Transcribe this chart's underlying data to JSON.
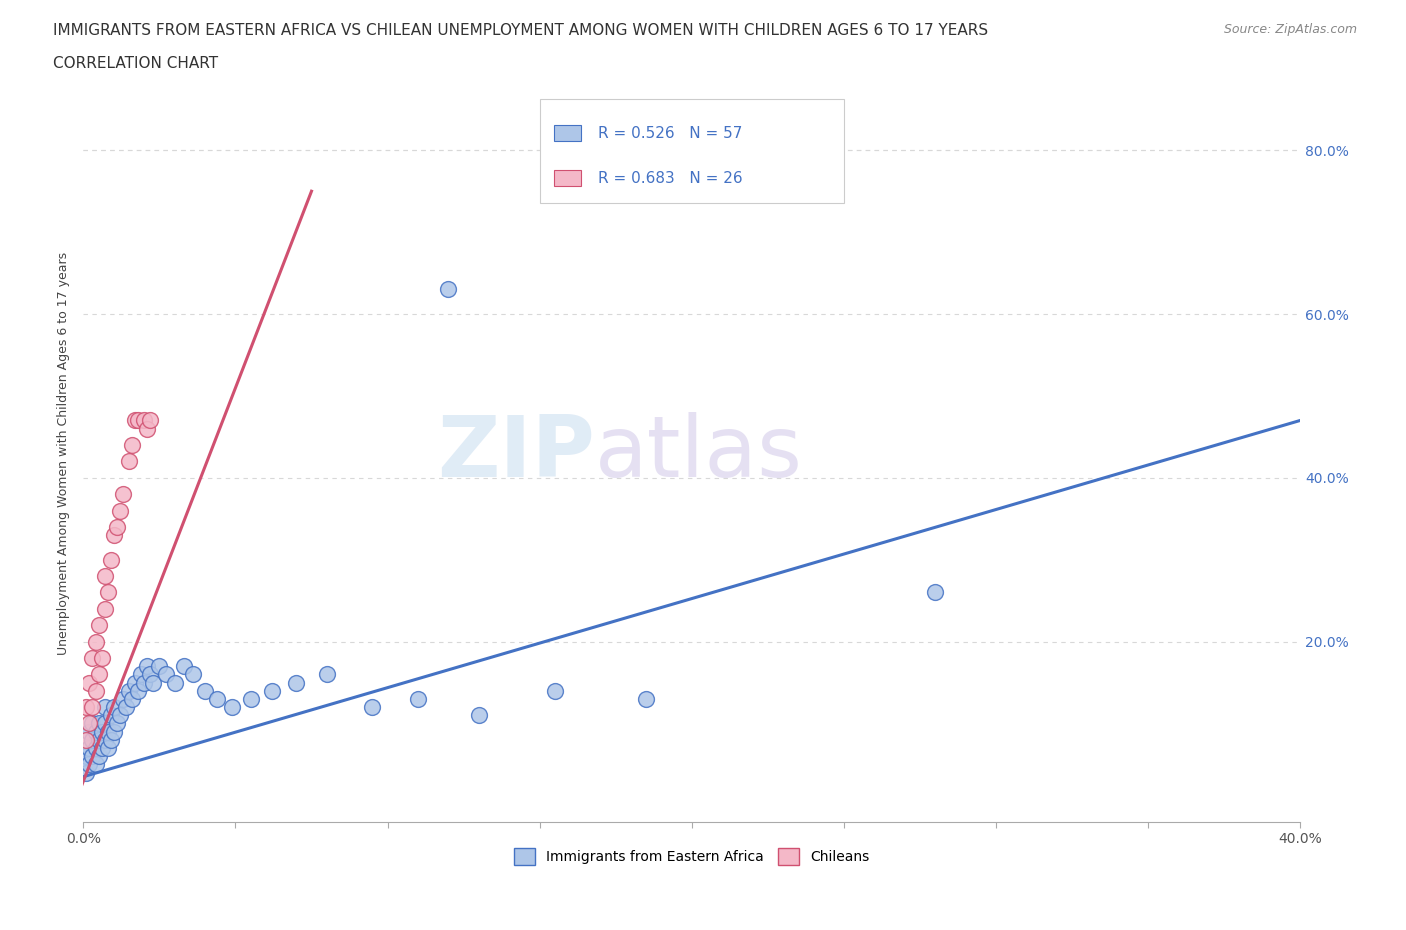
{
  "title_line1": "IMMIGRANTS FROM EASTERN AFRICA VS CHILEAN UNEMPLOYMENT AMONG WOMEN WITH CHILDREN AGES 6 TO 17 YEARS",
  "title_line2": "CORRELATION CHART",
  "source_text": "Source: ZipAtlas.com",
  "ylabel": "Unemployment Among Women with Children Ages 6 to 17 years",
  "xlim": [
    0.0,
    0.4
  ],
  "ylim": [
    -0.02,
    0.88
  ],
  "xticks": [
    0.0,
    0.05,
    0.1,
    0.15,
    0.2,
    0.25,
    0.3,
    0.35,
    0.4
  ],
  "yticks": [
    0.0,
    0.2,
    0.4,
    0.6,
    0.8
  ],
  "yticklabels_right": [
    "",
    "20.0%",
    "40.0%",
    "60.0%",
    "80.0%"
  ],
  "watermark_zip": "ZIP",
  "watermark_atlas": "atlas",
  "legend_r1": "R = 0.526   N = 57",
  "legend_r2": "R = 0.683   N = 26",
  "blue_color": "#aec6e8",
  "blue_edge_color": "#4472c4",
  "pink_color": "#f4b8c8",
  "pink_edge_color": "#d05070",
  "blue_line_color": "#4472c4",
  "pink_line_color": "#d05070",
  "blue_scatter_x": [
    0.001,
    0.001,
    0.002,
    0.002,
    0.002,
    0.003,
    0.003,
    0.003,
    0.004,
    0.004,
    0.004,
    0.005,
    0.005,
    0.005,
    0.006,
    0.006,
    0.007,
    0.007,
    0.007,
    0.008,
    0.008,
    0.009,
    0.009,
    0.01,
    0.01,
    0.011,
    0.012,
    0.013,
    0.014,
    0.015,
    0.016,
    0.017,
    0.018,
    0.019,
    0.02,
    0.021,
    0.022,
    0.023,
    0.025,
    0.027,
    0.03,
    0.033,
    0.036,
    0.04,
    0.044,
    0.049,
    0.055,
    0.062,
    0.07,
    0.08,
    0.095,
    0.11,
    0.13,
    0.155,
    0.185,
    0.28,
    0.12
  ],
  "blue_scatter_y": [
    0.04,
    0.06,
    0.05,
    0.07,
    0.09,
    0.06,
    0.08,
    0.1,
    0.05,
    0.07,
    0.09,
    0.06,
    0.08,
    0.1,
    0.07,
    0.09,
    0.08,
    0.1,
    0.12,
    0.07,
    0.09,
    0.08,
    0.11,
    0.09,
    0.12,
    0.1,
    0.11,
    0.13,
    0.12,
    0.14,
    0.13,
    0.15,
    0.14,
    0.16,
    0.15,
    0.17,
    0.16,
    0.15,
    0.17,
    0.16,
    0.15,
    0.17,
    0.16,
    0.14,
    0.13,
    0.12,
    0.13,
    0.14,
    0.15,
    0.16,
    0.12,
    0.13,
    0.11,
    0.14,
    0.13,
    0.26,
    0.63
  ],
  "pink_scatter_x": [
    0.001,
    0.001,
    0.002,
    0.002,
    0.003,
    0.003,
    0.004,
    0.004,
    0.005,
    0.005,
    0.006,
    0.007,
    0.007,
    0.008,
    0.009,
    0.01,
    0.011,
    0.012,
    0.013,
    0.015,
    0.016,
    0.017,
    0.018,
    0.02,
    0.021,
    0.022
  ],
  "pink_scatter_y": [
    0.08,
    0.12,
    0.1,
    0.15,
    0.12,
    0.18,
    0.14,
    0.2,
    0.16,
    0.22,
    0.18,
    0.24,
    0.28,
    0.26,
    0.3,
    0.33,
    0.34,
    0.36,
    0.38,
    0.42,
    0.44,
    0.47,
    0.47,
    0.47,
    0.46,
    0.47
  ],
  "blue_trend_x": [
    0.0,
    0.4
  ],
  "blue_trend_y": [
    0.035,
    0.47
  ],
  "pink_trend_x": [
    -0.001,
    0.075
  ],
  "pink_trend_y": [
    0.02,
    0.75
  ],
  "dashed_line_y": 0.8,
  "background_color": "#ffffff",
  "grid_color": "#d8d8d8",
  "title_fontsize": 11,
  "marker_size": 130
}
